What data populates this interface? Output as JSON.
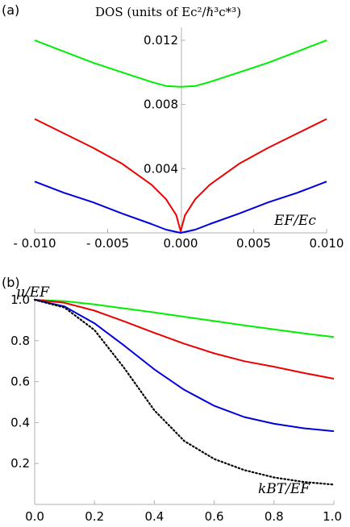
{
  "chart_data": [
    {
      "panel": "(a)",
      "type": "line",
      "title": "DOS (units of Ec²/ℏ³c*³)",
      "xlabel": "EF/Ec",
      "ylabel": "",
      "xlim": [
        -0.01,
        0.01
      ],
      "ylim": [
        0,
        0.0128
      ],
      "xticks": [
        -0.01,
        -0.005,
        0.0,
        0.005,
        0.01
      ],
      "xtick_labels": [
        "- 0.010",
        "- 0.005",
        "0.000",
        "0.005",
        "0.010"
      ],
      "yticks": [
        0.004,
        0.008,
        0.012
      ],
      "ytick_labels": [
        "0.004",
        "0.008",
        "0.012"
      ],
      "series": [
        {
          "color": "#00ee00",
          "x": [
            -0.01,
            -0.008,
            -0.006,
            -0.004,
            -0.002,
            -0.001,
            0.0,
            0.001,
            0.002,
            0.004,
            0.006,
            0.008,
            0.01
          ],
          "y": [
            0.012,
            0.0113,
            0.0106,
            0.01,
            0.0094,
            0.00915,
            0.0091,
            0.00915,
            0.0094,
            0.01,
            0.0106,
            0.0113,
            0.012
          ]
        },
        {
          "color": "#ee0000",
          "x": [
            -0.01,
            -0.008,
            -0.006,
            -0.004,
            -0.002,
            -0.001,
            -0.0003,
            0.0,
            0.0003,
            0.001,
            0.002,
            0.004,
            0.006,
            0.008,
            0.01
          ],
          "y": [
            0.0071,
            0.0062,
            0.0053,
            0.0043,
            0.003,
            0.0021,
            0.0011,
            0.0001,
            0.0011,
            0.0021,
            0.003,
            0.0043,
            0.0053,
            0.0062,
            0.0071
          ]
        },
        {
          "color": "#0000dd",
          "x": [
            -0.01,
            -0.008,
            -0.006,
            -0.004,
            -0.002,
            -0.001,
            0.0,
            0.001,
            0.002,
            0.004,
            0.006,
            0.008,
            0.01
          ],
          "y": [
            0.0032,
            0.0025,
            0.0019,
            0.0012,
            0.00055,
            0.0002,
            0.0,
            0.0002,
            0.00055,
            0.0012,
            0.0019,
            0.0025,
            0.0032
          ]
        }
      ]
    },
    {
      "panel": "(b)",
      "type": "line",
      "xlabel": "kBT/EF",
      "ylabel": "μ/EF",
      "xlim": [
        0.0,
        1.0
      ],
      "ylim": [
        0.0,
        1.0
      ],
      "xticks": [
        0.0,
        0.2,
        0.4,
        0.6,
        0.8,
        1.0
      ],
      "xtick_labels": [
        "0.0",
        "0.2",
        "0.4",
        "0.6",
        "0.8",
        "1.0"
      ],
      "yticks": [
        0.2,
        0.4,
        0.6,
        0.8,
        1.0
      ],
      "ytick_labels": [
        "0.2",
        "0.4",
        "0.6",
        "0.8",
        "1.0"
      ],
      "series": [
        {
          "color": "#00ee00",
          "style": "solid",
          "x": [
            0.0,
            0.1,
            0.2,
            0.3,
            0.4,
            0.5,
            0.6,
            0.7,
            0.8,
            0.9,
            1.0
          ],
          "y": [
            1.0,
            0.993,
            0.977,
            0.958,
            0.938,
            0.917,
            0.896,
            0.875,
            0.855,
            0.836,
            0.818
          ]
        },
        {
          "color": "#ee0000",
          "style": "solid",
          "x": [
            0.0,
            0.1,
            0.2,
            0.3,
            0.4,
            0.5,
            0.6,
            0.7,
            0.8,
            0.9,
            1.0
          ],
          "y": [
            1.0,
            0.985,
            0.947,
            0.894,
            0.838,
            0.785,
            0.738,
            0.7,
            0.673,
            0.642,
            0.614
          ]
        },
        {
          "color": "#0000dd",
          "style": "solid",
          "x": [
            0.0,
            0.1,
            0.2,
            0.3,
            0.4,
            0.5,
            0.6,
            0.7,
            0.8,
            0.9,
            1.0
          ],
          "y": [
            1.0,
            0.967,
            0.885,
            0.775,
            0.66,
            0.56,
            0.482,
            0.427,
            0.394,
            0.372,
            0.358
          ]
        },
        {
          "color": "#000000",
          "style": "dotted",
          "x": [
            0.0,
            0.1,
            0.2,
            0.3,
            0.4,
            0.5,
            0.6,
            0.7,
            0.8,
            0.9,
            1.0
          ],
          "y": [
            1.0,
            0.962,
            0.852,
            0.665,
            0.46,
            0.31,
            0.222,
            0.168,
            0.132,
            0.11,
            0.097
          ]
        }
      ]
    }
  ]
}
